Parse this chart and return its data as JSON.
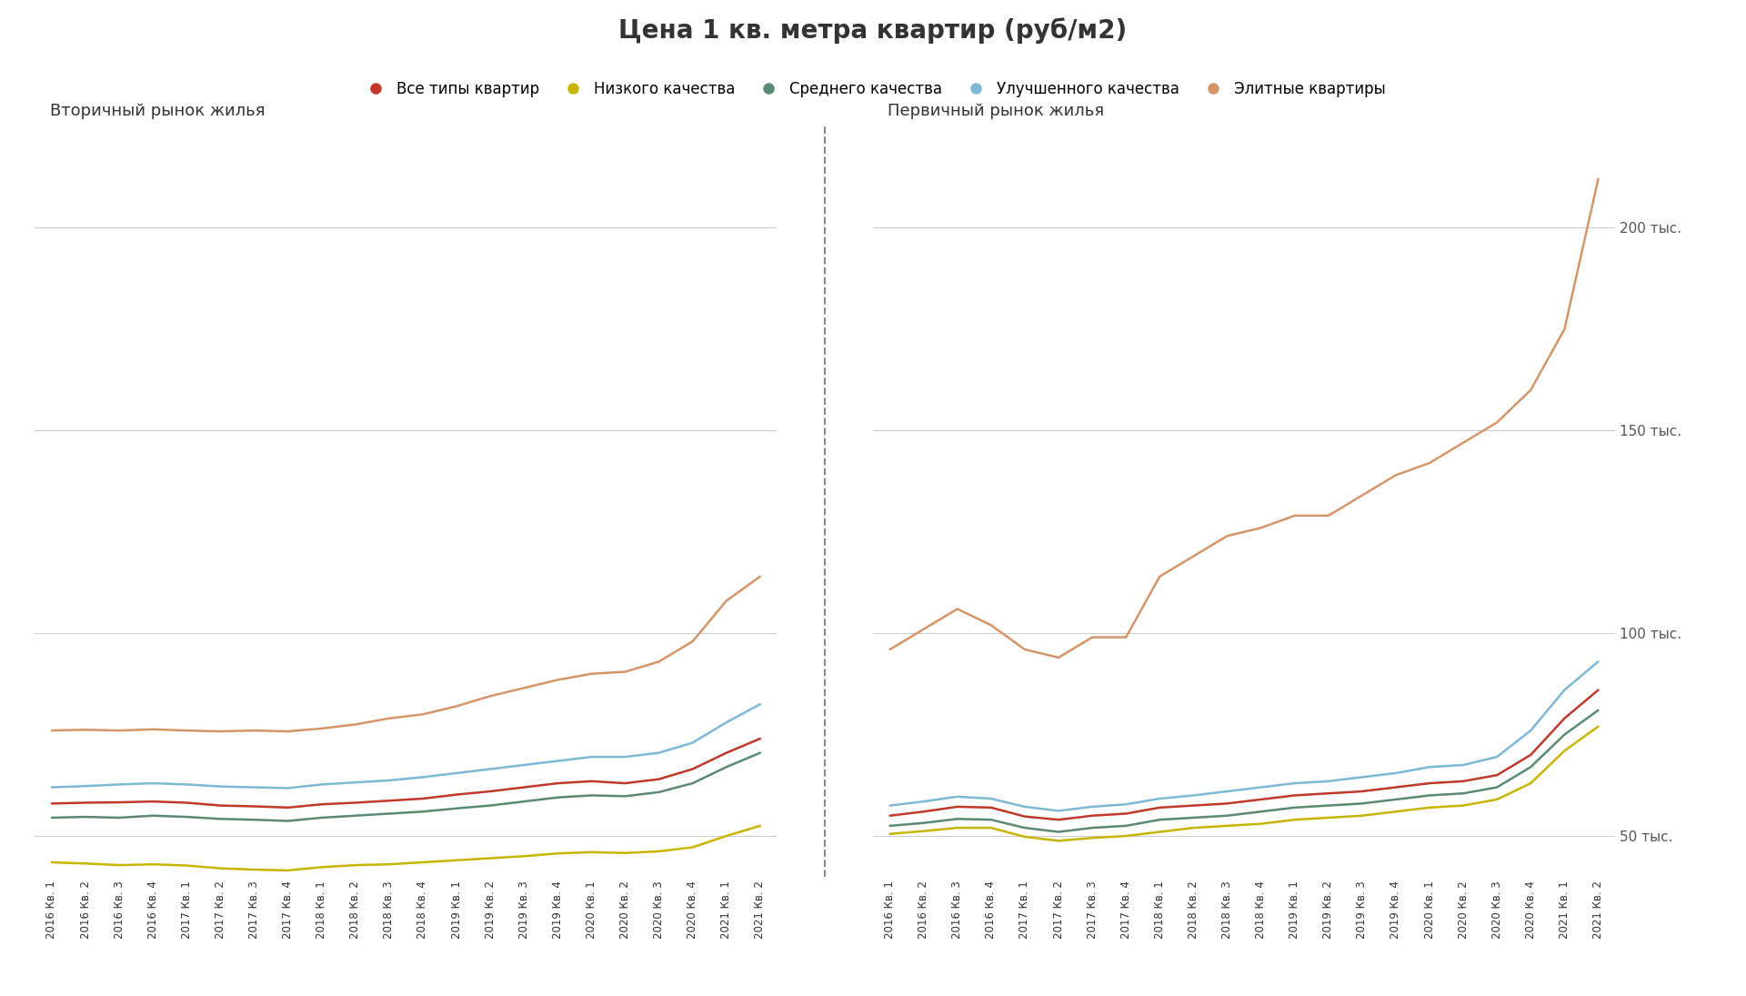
{
  "title": "Цена 1 кв. метра квартир (руб/м2)",
  "title_bg": "#f0e8b8",
  "bg_color": "#ffffff",
  "plot_bg": "#ffffff",
  "subtitle_left": "Вторичный рынок жилья",
  "subtitle_right": "Первичный рынок жилья",
  "legend_labels": [
    "Все типы квартир",
    "Низкого качества",
    "Среднего качества",
    "Улучшенного качества",
    "Элитные квартиры"
  ],
  "legend_colors": [
    "#c0392b",
    "#c8b400",
    "#5a8a72",
    "#7eb8d4",
    "#d4956a"
  ],
  "ylim": [
    40000,
    225000
  ],
  "yticks": [
    50000,
    100000,
    150000,
    200000
  ],
  "ytick_labels": [
    "50 тыс.",
    "100 тыс.",
    "150 тыс.",
    "200 тыс."
  ],
  "quarters": [
    "2016 Кв. 1",
    "2016 Кв. 2",
    "2016 Кв. 3",
    "2016 Кв. 4",
    "2017 Кв. 1",
    "2017 Кв. 2",
    "2017 Кв. 3",
    "2017 Кв. 4",
    "2018 Кв. 1",
    "2018 Кв. 2",
    "2018 Кв. 3",
    "2018 Кв. 4",
    "2019 Кв. 1",
    "2019 Кв. 2",
    "2019 Кв. 3",
    "2019 Кв. 4",
    "2020 Кв. 1",
    "2020 Кв. 2",
    "2020 Кв. 3",
    "2020 Кв. 4",
    "2021 Кв. 1",
    "2021 Кв. 2"
  ],
  "secondary": {
    "all_types": [
      58000,
      58200,
      58300,
      58500,
      58200,
      57500,
      57300,
      57000,
      57800,
      58200,
      58700,
      59200,
      60200,
      61000,
      62000,
      63000,
      63500,
      63000,
      64000,
      66500,
      70500,
      74000
    ],
    "low": [
      43500,
      43200,
      42800,
      43000,
      42700,
      42000,
      41700,
      41500,
      42300,
      42800,
      43000,
      43500,
      44000,
      44500,
      45000,
      45700,
      46000,
      45800,
      46200,
      47200,
      50000,
      52500
    ],
    "medium": [
      54500,
      54700,
      54500,
      55000,
      54700,
      54200,
      54000,
      53700,
      54500,
      55000,
      55500,
      56000,
      56800,
      57500,
      58500,
      59500,
      60000,
      59800,
      60800,
      63000,
      67000,
      70500
    ],
    "improved": [
      62000,
      62300,
      62700,
      63000,
      62700,
      62200,
      62000,
      61800,
      62700,
      63200,
      63700,
      64500,
      65500,
      66500,
      67500,
      68500,
      69500,
      69500,
      70500,
      73000,
      78000,
      82500
    ],
    "elite": [
      76000,
      76200,
      76000,
      76300,
      76000,
      75800,
      76000,
      75800,
      76500,
      77500,
      79000,
      80000,
      82000,
      84500,
      86500,
      88500,
      90000,
      90500,
      93000,
      98000,
      108000,
      114000
    ]
  },
  "primary": {
    "all_types": [
      55000,
      56000,
      57200,
      57000,
      54800,
      54000,
      55000,
      55500,
      57000,
      57500,
      58000,
      59000,
      60000,
      60500,
      61000,
      62000,
      63000,
      63500,
      65000,
      70000,
      79000,
      86000
    ],
    "low": [
      50500,
      51200,
      52000,
      52000,
      49800,
      48800,
      49500,
      50000,
      51000,
      52000,
      52500,
      53000,
      54000,
      54500,
      55000,
      56000,
      57000,
      57500,
      59000,
      63000,
      71000,
      77000
    ],
    "medium": [
      52500,
      53200,
      54200,
      54000,
      52000,
      51000,
      52000,
      52500,
      54000,
      54500,
      55000,
      56000,
      57000,
      57500,
      58000,
      59000,
      60000,
      60500,
      62000,
      67000,
      75000,
      81000
    ],
    "improved": [
      57500,
      58500,
      59700,
      59200,
      57200,
      56200,
      57200,
      57800,
      59200,
      60000,
      61000,
      62000,
      63000,
      63500,
      64500,
      65500,
      67000,
      67500,
      69500,
      76000,
      86000,
      93000
    ],
    "elite": [
      96000,
      101000,
      106000,
      102000,
      96000,
      94000,
      99000,
      99000,
      114000,
      119000,
      124000,
      126000,
      129000,
      129000,
      134000,
      139000,
      142000,
      147000,
      152000,
      160000,
      175000,
      212000
    ]
  },
  "grid_color": "#cccccc",
  "line_width": 1.8
}
